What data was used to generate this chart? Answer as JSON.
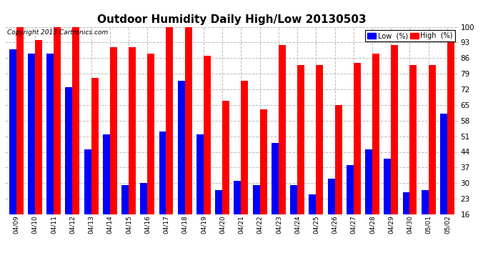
{
  "title": "Outdoor Humidity Daily High/Low 20130503",
  "copyright": "Copyright 2013 Cartronics.com",
  "legend_low": "Low  (%)",
  "legend_high": "High  (%)",
  "dates": [
    "04/09",
    "04/10",
    "04/11",
    "04/12",
    "04/13",
    "04/14",
    "04/15",
    "04/16",
    "04/17",
    "04/18",
    "04/19",
    "04/20",
    "04/21",
    "04/22",
    "04/23",
    "04/24",
    "04/25",
    "04/26",
    "04/27",
    "04/28",
    "04/29",
    "04/30",
    "05/01",
    "05/02"
  ],
  "high": [
    100,
    94,
    100,
    100,
    77,
    91,
    91,
    88,
    100,
    100,
    87,
    67,
    76,
    63,
    92,
    83,
    83,
    65,
    84,
    88,
    92,
    83,
    83,
    94
  ],
  "low": [
    90,
    88,
    88,
    73,
    45,
    52,
    29,
    30,
    53,
    76,
    52,
    27,
    31,
    29,
    48,
    29,
    25,
    32,
    38,
    45,
    41,
    26,
    27,
    61
  ],
  "high_color": "#ff0000",
  "low_color": "#0000ff",
  "bg_color": "#ffffff",
  "grid_color": "#bbbbbb",
  "ylim_min": 16,
  "ylim_max": 100,
  "yticks": [
    16,
    23,
    30,
    37,
    44,
    51,
    58,
    65,
    72,
    79,
    86,
    93,
    100
  ],
  "bar_width": 0.38,
  "title_fontsize": 11,
  "tick_fontsize": 6.5,
  "ytick_fontsize": 7.5,
  "legend_fontsize": 7
}
